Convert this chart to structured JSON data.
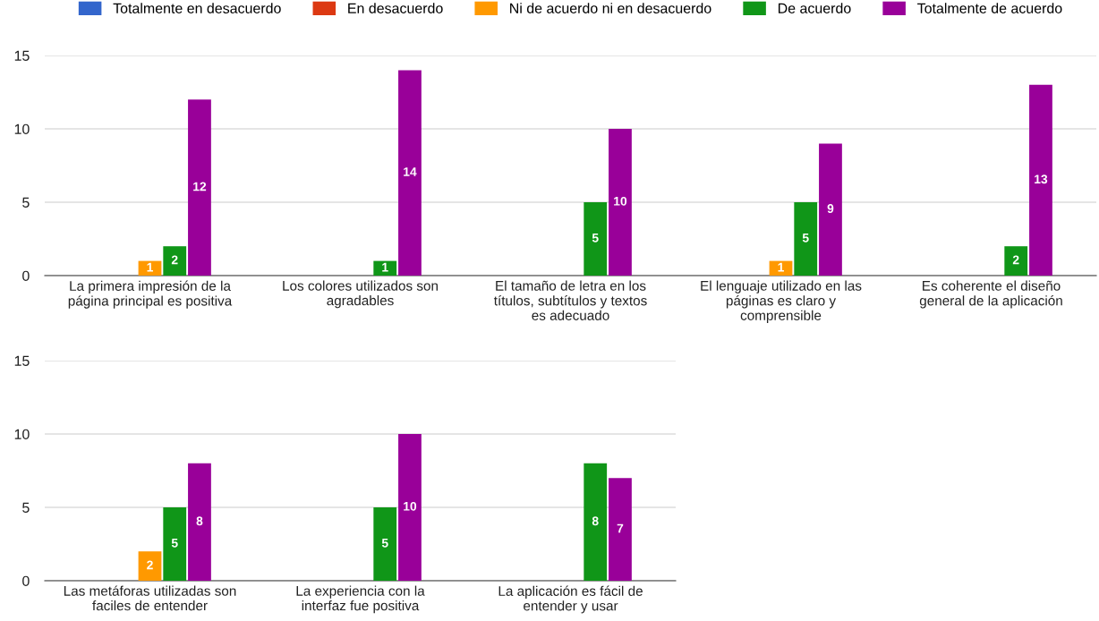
{
  "chart_data": [
    {
      "type": "bar",
      "categories": [
        "La primera impresión de la página principal es positiva",
        "Los colores utilizados son agradables",
        "El tamaño de letra en los títulos, subtítulos y textos es adecuado",
        "El lenguaje utilizado en las páginas es claro y comprensible",
        "Es coherente el diseño general de la aplicación"
      ],
      "series": [
        {
          "name": "Totalmente en desacuerdo",
          "color": "#3366cc",
          "values": [
            null,
            null,
            null,
            null,
            null
          ]
        },
        {
          "name": "En desacuerdo",
          "color": "#dc3912",
          "values": [
            null,
            null,
            null,
            null,
            null
          ]
        },
        {
          "name": "Ni de acuerdo ni en desacuerdo",
          "color": "#ff9900",
          "values": [
            1,
            null,
            null,
            1,
            null
          ]
        },
        {
          "name": "De acuerdo",
          "color": "#109618",
          "values": [
            2,
            1,
            5,
            5,
            2
          ]
        },
        {
          "name": "Totalmente de acuerdo",
          "color": "#990099",
          "values": [
            12,
            14,
            10,
            9,
            13
          ]
        }
      ],
      "ylim": [
        0,
        15
      ],
      "yticks": [
        0,
        5,
        10,
        15
      ],
      "grid": "y",
      "legend": "top",
      "data_labels": true
    },
    {
      "type": "bar",
      "categories": [
        "Las metáforas utilizadas son faciles de entender",
        "La experiencia con la interfaz fue positiva",
        "La aplicación es fácil de entender y usar"
      ],
      "series": [
        {
          "color": "#3366cc",
          "values": [
            null,
            null,
            null
          ]
        },
        {
          "color": "#dc3912",
          "values": [
            null,
            null,
            null
          ]
        },
        {
          "color": "#ff9900",
          "values": [
            2,
            null,
            null
          ]
        },
        {
          "color": "#109618",
          "values": [
            5,
            5,
            8
          ]
        },
        {
          "color": "#990099",
          "values": [
            8,
            10,
            7
          ]
        }
      ],
      "ylim": [
        0,
        15
      ],
      "yticks": [
        0,
        5,
        10,
        15
      ],
      "grid": "y",
      "data_labels": true
    }
  ]
}
